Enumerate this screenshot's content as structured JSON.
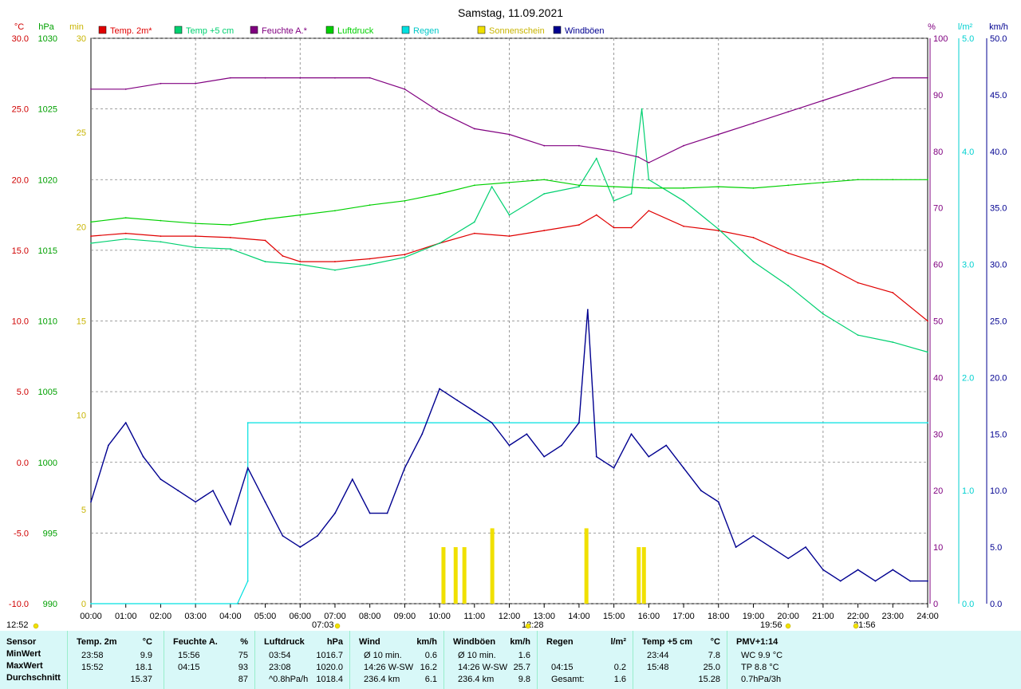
{
  "title": "Samstag, 11.09.2021",
  "colors": {
    "temp2m": "#e00000",
    "temp5cm": "#00d070",
    "feuchte": "#800080",
    "luftdruck": "#00d000",
    "regen": "#00e0e0",
    "sonne": "#f0e000",
    "wind": "#000090",
    "grid": "#808080"
  },
  "legend": [
    {
      "label": "Temp. 2m*",
      "color": "#e00000"
    },
    {
      "label": "Temp +5 cm",
      "color": "#00d070"
    },
    {
      "label": "Feuchte A.*",
      "color": "#800080"
    },
    {
      "label": "Luftdruck",
      "color": "#00d000"
    },
    {
      "label": "Regen",
      "color": "#00e0e0"
    },
    {
      "label": "Sonnenschein",
      "color": "#f0e000"
    },
    {
      "label": "Windböen",
      "color": "#000090"
    }
  ],
  "axes": {
    "temp_unit": "°C",
    "press_unit": "hPa",
    "sun_unit": "min",
    "hum_unit": "%",
    "rain_unit": "l/m²",
    "wind_unit": "km/h",
    "temp_ticks": [
      "30.0",
      "25.0",
      "20.0",
      "15.0",
      "10.0",
      "5.0",
      "0.0",
      "-5.0",
      "-10.0"
    ],
    "press_ticks": [
      "1030",
      "1025",
      "1020",
      "1015",
      "1010",
      "1005",
      "1000",
      "995",
      "990"
    ],
    "sun_ticks": [
      "30",
      "25",
      "20",
      "15",
      "10",
      "5",
      "0"
    ],
    "hum_ticks": [
      "100",
      "90",
      "80",
      "70",
      "60",
      "50",
      "40",
      "30",
      "20",
      "10",
      "0"
    ],
    "rain_ticks": [
      "5.0",
      "4.0",
      "3.0",
      "2.0",
      "1.0",
      "0.0"
    ],
    "wind_ticks": [
      "50.0",
      "45.0",
      "40.0",
      "35.0",
      "30.0",
      "25.0",
      "20.0",
      "15.0",
      "10.0",
      "5.0",
      "0.0"
    ],
    "x_ticks": [
      "00:00",
      "01:00",
      "02:00",
      "03:00",
      "04:00",
      "05:00",
      "06:00",
      "07:00",
      "08:00",
      "09:00",
      "10:00",
      "11:00",
      "12:00",
      "13:00",
      "14:00",
      "15:00",
      "16:00",
      "17:00",
      "18:00",
      "19:00",
      "20:00",
      "21:00",
      "22:00",
      "23:00",
      "24:00"
    ],
    "sunrise": "07:03",
    "noon": "12:28",
    "sunset": "19:56",
    "moonrise": "12:52",
    "moonset": "21:56"
  },
  "chart_data": {
    "type": "line",
    "title": "Samstag, 11.09.2021",
    "x_range": [
      0,
      24
    ],
    "series": [
      {
        "name": "Temp. 2m*",
        "axis": "°C",
        "ylim": [
          -10,
          30
        ],
        "x": [
          0,
          1,
          2,
          3,
          4,
          5,
          5.5,
          6,
          7,
          8,
          9,
          10,
          11,
          12,
          13,
          14,
          14.5,
          15,
          15.5,
          16,
          17,
          18,
          19,
          20,
          21,
          22,
          23,
          24
        ],
        "y": [
          16.0,
          16.2,
          16.0,
          16.0,
          15.9,
          15.7,
          14.6,
          14.2,
          14.2,
          14.4,
          14.7,
          15.5,
          16.2,
          16.0,
          16.4,
          16.8,
          17.5,
          16.6,
          16.6,
          17.8,
          16.7,
          16.4,
          15.9,
          14.8,
          14.0,
          12.7,
          12.0,
          10.0
        ]
      },
      {
        "name": "Temp +5 cm",
        "axis": "°C",
        "ylim": [
          -10,
          30
        ],
        "x": [
          0,
          1,
          2,
          3,
          4,
          5,
          6,
          7,
          8,
          9,
          10,
          11,
          11.5,
          12,
          13,
          14,
          14.5,
          15,
          15.5,
          15.8,
          16,
          17,
          18,
          19,
          20,
          21,
          22,
          23,
          24
        ],
        "y": [
          15.5,
          15.8,
          15.6,
          15.2,
          15.1,
          14.2,
          14.0,
          13.6,
          14.0,
          14.5,
          15.5,
          17.0,
          19.5,
          17.5,
          19.0,
          19.5,
          21.5,
          18.5,
          19.0,
          25.0,
          20.0,
          18.5,
          16.5,
          14.2,
          12.5,
          10.5,
          9.0,
          8.5,
          7.8
        ]
      },
      {
        "name": "Feuchte A.*",
        "axis": "%",
        "ylim": [
          0,
          100
        ],
        "x": [
          0,
          1,
          2,
          3,
          4,
          5,
          6,
          7,
          8,
          9,
          10,
          11,
          12,
          13,
          14,
          15,
          15.7,
          16,
          17,
          18,
          19,
          20,
          21,
          22,
          23,
          24
        ],
        "y": [
          91,
          91,
          92,
          92,
          93,
          93,
          93,
          93,
          93,
          91,
          87,
          84,
          83,
          81,
          81,
          80,
          79,
          78,
          81,
          83,
          85,
          87,
          89,
          91,
          93,
          93
        ]
      },
      {
        "name": "Luftdruck",
        "axis": "hPa",
        "ylim": [
          990,
          1030
        ],
        "x": [
          0,
          1,
          2,
          3,
          4,
          5,
          6,
          7,
          8,
          9,
          10,
          11,
          12,
          13,
          14,
          15,
          16,
          17,
          18,
          19,
          20,
          21,
          22,
          23,
          24
        ],
        "y": [
          1017.0,
          1017.3,
          1017.1,
          1016.9,
          1016.8,
          1017.2,
          1017.5,
          1017.8,
          1018.2,
          1018.5,
          1019.0,
          1019.6,
          1019.8,
          1020.0,
          1019.6,
          1019.5,
          1019.4,
          1019.4,
          1019.5,
          1019.4,
          1019.6,
          1019.8,
          1020.0,
          1020.0,
          1020.0
        ]
      },
      {
        "name": "Regen",
        "axis": "l/m²",
        "ylim": [
          0,
          5
        ],
        "x": [
          0,
          4.2,
          4.5,
          4.5,
          24
        ],
        "y": [
          0,
          0,
          0.2,
          1.6,
          1.6
        ]
      },
      {
        "name": "Windböen",
        "axis": "km/h",
        "ylim": [
          0,
          50
        ],
        "x": [
          0,
          0.5,
          1,
          1.5,
          2,
          2.5,
          3,
          3.5,
          4,
          4.5,
          5,
          5.5,
          6,
          6.5,
          7,
          7.5,
          8,
          8.5,
          9,
          9.5,
          10,
          10.5,
          11,
          11.5,
          12,
          12.5,
          13,
          13.5,
          14,
          14.25,
          14.5,
          15,
          15.5,
          16,
          16.5,
          17,
          17.5,
          18,
          18.5,
          19,
          19.5,
          20,
          20.5,
          21,
          21.5,
          22,
          22.5,
          23,
          23.5,
          24
        ],
        "y": [
          9,
          14,
          16,
          13,
          11,
          10,
          9,
          10,
          7,
          12,
          9,
          6,
          5,
          6,
          8,
          11,
          8,
          8,
          12,
          15,
          19,
          18,
          17,
          16,
          14,
          15,
          13,
          14,
          16,
          26,
          13,
          12,
          15,
          13,
          14,
          12,
          10,
          9,
          5,
          6,
          5,
          4,
          5,
          3,
          2,
          3,
          2,
          3,
          2,
          2
        ]
      }
    ],
    "sunshine_minutes": [
      {
        "x": 10.1,
        "y": 3
      },
      {
        "x": 10.45,
        "y": 3
      },
      {
        "x": 10.7,
        "y": 3
      },
      {
        "x": 11.5,
        "y": 4
      },
      {
        "x": 14.2,
        "y": 4
      },
      {
        "x": 15.7,
        "y": 3
      },
      {
        "x": 15.85,
        "y": 3
      }
    ]
  },
  "stats": {
    "row_labels": [
      "Sensor",
      "MinWert",
      "MaxWert",
      "Durchschnitt"
    ],
    "columns": [
      {
        "head": "Temp. 2m",
        "unit": "°C",
        "rows": [
          [
            "23:58",
            "9.9"
          ],
          [
            "15:52",
            "18.1"
          ],
          [
            "",
            "15.37"
          ]
        ]
      },
      {
        "head": "Feuchte A.",
        "unit": "%",
        "rows": [
          [
            "15:56",
            "75"
          ],
          [
            "04:15",
            "93"
          ],
          [
            "",
            "87"
          ]
        ]
      },
      {
        "head": "Luftdruck",
        "unit": "hPa",
        "rows": [
          [
            "03:54",
            "1016.7"
          ],
          [
            "23:08",
            "1020.0"
          ],
          [
            "^0.8hPa/h",
            "1018.4"
          ]
        ]
      },
      {
        "head": "Wind",
        "unit": "km/h",
        "rows": [
          [
            "Ø 10 min.",
            "0.6"
          ],
          [
            "14:26   W-SW",
            "16.2"
          ],
          [
            "236.4 km",
            "6.1"
          ]
        ]
      },
      {
        "head": "Windböen",
        "unit": "km/h",
        "rows": [
          [
            "Ø 10 min.",
            "1.6"
          ],
          [
            "14:26   W-SW",
            "25.7"
          ],
          [
            "236.4 km",
            "9.8"
          ]
        ]
      },
      {
        "head": "Regen",
        "unit": "l/m²",
        "rows": [
          [
            "",
            ""
          ],
          [
            "04:15",
            "0.2"
          ],
          [
            "Gesamt:",
            "1.6"
          ]
        ]
      },
      {
        "head": "Temp +5 cm",
        "unit": "°C",
        "rows": [
          [
            "23:44",
            "7.8"
          ],
          [
            "15:48",
            "25.0"
          ],
          [
            "",
            "15.28"
          ]
        ]
      },
      {
        "head": "PMV+1:14",
        "unit": "",
        "rows": [
          [
            "WC 9.9 °C",
            ""
          ],
          [
            "TP 8.8 °C",
            ""
          ],
          [
            "0.7hPa/3h",
            ""
          ]
        ]
      }
    ]
  }
}
